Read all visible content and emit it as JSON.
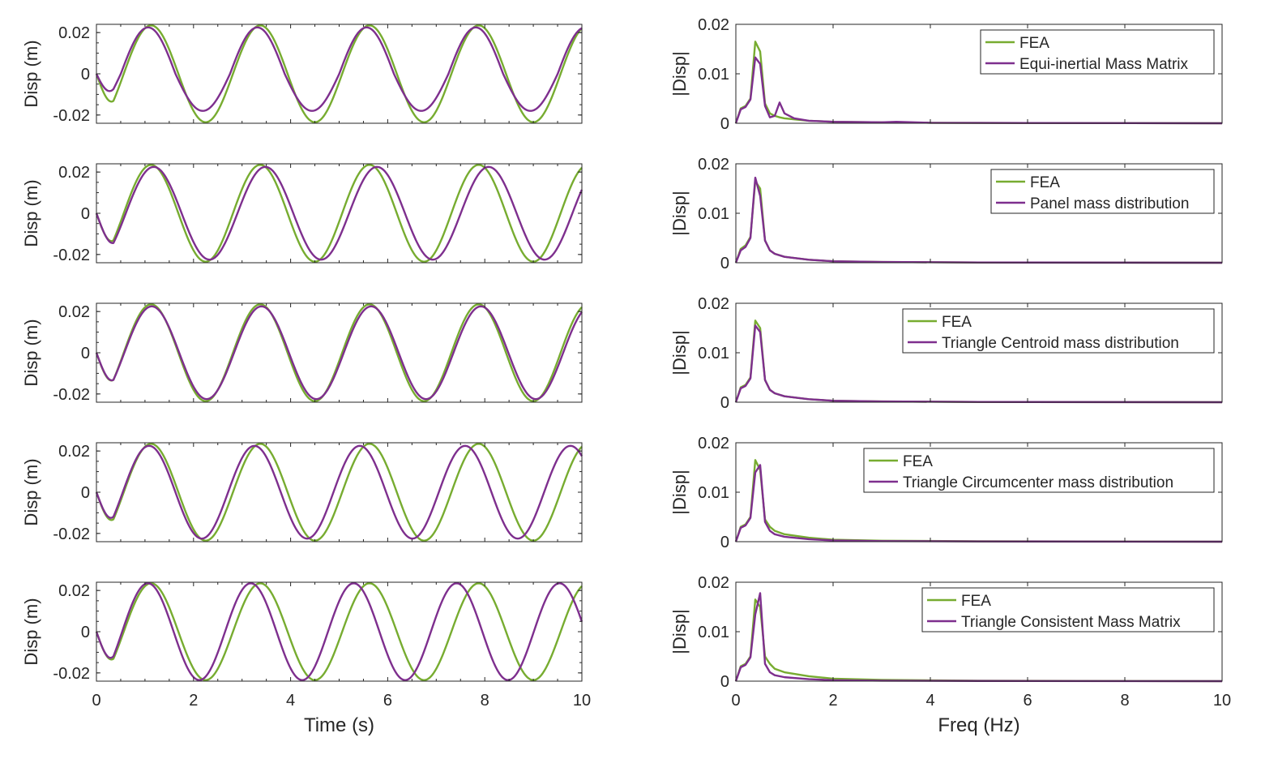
{
  "colors": {
    "fea": "#77AC30",
    "model": "#7E2F8E",
    "axis": "#262626"
  },
  "time_axis": {
    "xlabel": "Time (s)",
    "ylabel": "Disp (m)",
    "xlim": [
      0,
      10
    ],
    "ylim": [
      -0.024,
      0.024
    ],
    "xticks": [
      "0",
      "2",
      "4",
      "6",
      "8",
      "10"
    ],
    "yticks": [
      "-0.02",
      "0",
      "0.02"
    ]
  },
  "freq_axis": {
    "xlabel": "Freq (Hz)",
    "ylabel": "|Disp|",
    "xlim": [
      0,
      10
    ],
    "ylim": [
      0,
      0.02
    ],
    "xticks": [
      "0",
      "2",
      "4",
      "6",
      "8",
      "10"
    ],
    "yticks": [
      "0",
      "0.01",
      "0.02"
    ]
  },
  "chart_data": [
    {
      "type": "line",
      "panel": "time",
      "row": 1,
      "xlabel": "",
      "ylabel": "Disp (m)",
      "series": [
        {
          "name": "FEA",
          "period": 2.25,
          "amp": 0.0235,
          "lag": 0.0,
          "dip": [
            0,
            0
          ]
        },
        {
          "name": "Equi-inertial Mass Matrix",
          "period": 2.25,
          "amp": 0.0225,
          "lag": -0.06,
          "dip": [
            0.2,
            0.004
          ]
        }
      ]
    },
    {
      "type": "line",
      "panel": "freq",
      "row": 1,
      "xlabel": "",
      "ylabel": "|Disp|",
      "series": [
        {
          "name": "FEA",
          "points": [
            [
              0,
              0
            ],
            [
              0.1,
              0.003
            ],
            [
              0.2,
              0.0035
            ],
            [
              0.3,
              0.005
            ],
            [
              0.4,
              0.0165
            ],
            [
              0.5,
              0.0145
            ],
            [
              0.6,
              0.004
            ],
            [
              0.7,
              0.002
            ],
            [
              0.8,
              0.0015
            ],
            [
              0.9,
              0.0012
            ],
            [
              1.0,
              0.001
            ],
            [
              1.2,
              0.0008
            ],
            [
              1.5,
              0.0005
            ],
            [
              2,
              0.0003
            ],
            [
              3,
              0.0002
            ],
            [
              4,
              0.0001
            ],
            [
              6,
              5e-05
            ],
            [
              10,
              0
            ]
          ]
        },
        {
          "name": "Equi-inertial Mass Matrix",
          "points": [
            [
              0,
              0
            ],
            [
              0.1,
              0.0028
            ],
            [
              0.2,
              0.0033
            ],
            [
              0.3,
              0.0048
            ],
            [
              0.4,
              0.0133
            ],
            [
              0.5,
              0.012
            ],
            [
              0.6,
              0.0035
            ],
            [
              0.7,
              0.0012
            ],
            [
              0.8,
              0.0015
            ],
            [
              0.9,
              0.0042
            ],
            [
              1.0,
              0.002
            ],
            [
              1.2,
              0.001
            ],
            [
              1.5,
              0.0005
            ],
            [
              2,
              0.0003
            ],
            [
              3,
              0.0002
            ],
            [
              3.3,
              0.0003
            ],
            [
              4,
              0.0001
            ],
            [
              6,
              5e-05
            ],
            [
              10,
              0
            ]
          ]
        }
      ]
    },
    {
      "type": "line",
      "panel": "time",
      "row": 2,
      "xlabel": "",
      "ylabel": "Disp (m)",
      "series": [
        {
          "name": "FEA",
          "period": 2.25,
          "amp": 0.0235,
          "lag": 0.0,
          "dip": [
            0,
            0
          ]
        },
        {
          "name": "Panel mass distribution",
          "period": 2.3,
          "amp": 0.0225,
          "lag": 0.03,
          "dip": [
            0,
            0
          ]
        }
      ]
    },
    {
      "type": "line",
      "panel": "freq",
      "row": 2,
      "xlabel": "",
      "ylabel": "|Disp|",
      "series": [
        {
          "name": "FEA",
          "points": [
            [
              0,
              0
            ],
            [
              0.1,
              0.0028
            ],
            [
              0.2,
              0.0035
            ],
            [
              0.3,
              0.0052
            ],
            [
              0.4,
              0.0165
            ],
            [
              0.5,
              0.015
            ],
            [
              0.6,
              0.0045
            ],
            [
              0.7,
              0.0025
            ],
            [
              0.8,
              0.0018
            ],
            [
              1.0,
              0.0012
            ],
            [
              1.5,
              0.0006
            ],
            [
              2,
              0.0003
            ],
            [
              3,
              0.00015
            ],
            [
              5,
              5e-05
            ],
            [
              10,
              0
            ]
          ]
        },
        {
          "name": "Panel mass distribution",
          "points": [
            [
              0,
              0
            ],
            [
              0.1,
              0.0025
            ],
            [
              0.2,
              0.0032
            ],
            [
              0.3,
              0.005
            ],
            [
              0.4,
              0.0172
            ],
            [
              0.5,
              0.0135
            ],
            [
              0.6,
              0.0045
            ],
            [
              0.7,
              0.0025
            ],
            [
              0.8,
              0.0018
            ],
            [
              1.0,
              0.0012
            ],
            [
              1.5,
              0.0006
            ],
            [
              2,
              0.0003
            ],
            [
              3,
              0.00015
            ],
            [
              5,
              5e-05
            ],
            [
              10,
              0
            ]
          ]
        }
      ]
    },
    {
      "type": "line",
      "panel": "time",
      "row": 3,
      "xlabel": "",
      "ylabel": "Disp (m)",
      "series": [
        {
          "name": "FEA",
          "period": 2.25,
          "amp": 0.0235,
          "lag": 0.0,
          "dip": [
            0,
            0
          ]
        },
        {
          "name": "Triangle Centroid mass distribution",
          "period": 2.26,
          "amp": 0.0225,
          "lag": 0.01,
          "dip": [
            0,
            0
          ]
        }
      ]
    },
    {
      "type": "line",
      "panel": "freq",
      "row": 3,
      "xlabel": "",
      "ylabel": "|Disp|",
      "series": [
        {
          "name": "FEA",
          "points": [
            [
              0,
              0
            ],
            [
              0.1,
              0.003
            ],
            [
              0.2,
              0.0035
            ],
            [
              0.3,
              0.005
            ],
            [
              0.4,
              0.0165
            ],
            [
              0.5,
              0.015
            ],
            [
              0.6,
              0.0045
            ],
            [
              0.7,
              0.0025
            ],
            [
              0.8,
              0.0018
            ],
            [
              1.0,
              0.0012
            ],
            [
              1.5,
              0.0006
            ],
            [
              2,
              0.0003
            ],
            [
              3,
              0.00015
            ],
            [
              5,
              5e-05
            ],
            [
              10,
              0
            ]
          ]
        },
        {
          "name": "Triangle Centroid mass distribution",
          "points": [
            [
              0,
              0
            ],
            [
              0.1,
              0.0028
            ],
            [
              0.2,
              0.0033
            ],
            [
              0.3,
              0.0048
            ],
            [
              0.4,
              0.0155
            ],
            [
              0.5,
              0.0142
            ],
            [
              0.6,
              0.0045
            ],
            [
              0.7,
              0.0025
            ],
            [
              0.8,
              0.0018
            ],
            [
              1.0,
              0.0012
            ],
            [
              1.5,
              0.0006
            ],
            [
              2,
              0.0003
            ],
            [
              3,
              0.00015
            ],
            [
              5,
              5e-05
            ],
            [
              10,
              0
            ]
          ]
        }
      ]
    },
    {
      "type": "line",
      "panel": "time",
      "row": 4,
      "xlabel": "",
      "ylabel": "Disp (m)",
      "series": [
        {
          "name": "FEA",
          "period": 2.25,
          "amp": 0.0235,
          "lag": 0.0,
          "dip": [
            0,
            0
          ]
        },
        {
          "name": "Triangle Circumcenter mass distribution",
          "period": 2.17,
          "amp": 0.0225,
          "lag": 0.0,
          "dip": [
            0,
            0
          ]
        }
      ]
    },
    {
      "type": "line",
      "panel": "freq",
      "row": 4,
      "xlabel": "",
      "ylabel": "|Disp|",
      "series": [
        {
          "name": "FEA",
          "points": [
            [
              0,
              0
            ],
            [
              0.1,
              0.003
            ],
            [
              0.2,
              0.0035
            ],
            [
              0.3,
              0.005
            ],
            [
              0.4,
              0.0165
            ],
            [
              0.5,
              0.0145
            ],
            [
              0.6,
              0.0045
            ],
            [
              0.7,
              0.003
            ],
            [
              0.8,
              0.0022
            ],
            [
              1.0,
              0.0015
            ],
            [
              1.5,
              0.0008
            ],
            [
              2,
              0.0004
            ],
            [
              3,
              0.0002
            ],
            [
              5,
              8e-05
            ],
            [
              10,
              0
            ]
          ]
        },
        {
          "name": "Triangle Circumcenter mass distribution",
          "points": [
            [
              0,
              0
            ],
            [
              0.1,
              0.0028
            ],
            [
              0.2,
              0.0033
            ],
            [
              0.3,
              0.0048
            ],
            [
              0.4,
              0.014
            ],
            [
              0.5,
              0.0155
            ],
            [
              0.6,
              0.004
            ],
            [
              0.7,
              0.0022
            ],
            [
              0.8,
              0.0015
            ],
            [
              1.0,
              0.001
            ],
            [
              1.5,
              0.0005
            ],
            [
              2,
              0.00025
            ],
            [
              3,
              0.00012
            ],
            [
              5,
              5e-05
            ],
            [
              10,
              0
            ]
          ]
        }
      ]
    },
    {
      "type": "line",
      "panel": "time",
      "row": 5,
      "xlabel": "Time (s)",
      "ylabel": "Disp (m)",
      "series": [
        {
          "name": "FEA",
          "period": 2.25,
          "amp": 0.0235,
          "lag": 0.0,
          "dip": [
            0,
            0
          ]
        },
        {
          "name": "Triangle Consistent Mass Matrix",
          "period": 2.12,
          "amp": 0.0235,
          "lag": 0.0,
          "dip": [
            0,
            0
          ]
        }
      ]
    },
    {
      "type": "line",
      "panel": "freq",
      "row": 5,
      "xlabel": "Freq (Hz)",
      "ylabel": "|Disp|",
      "series": [
        {
          "name": "FEA",
          "points": [
            [
              0,
              0
            ],
            [
              0.1,
              0.003
            ],
            [
              0.2,
              0.0035
            ],
            [
              0.3,
              0.005
            ],
            [
              0.4,
              0.0165
            ],
            [
              0.5,
              0.015
            ],
            [
              0.6,
              0.005
            ],
            [
              0.7,
              0.0035
            ],
            [
              0.8,
              0.0025
            ],
            [
              1.0,
              0.0018
            ],
            [
              1.5,
              0.001
            ],
            [
              2,
              0.0005
            ],
            [
              3,
              0.00025
            ],
            [
              5,
              0.0001
            ],
            [
              10,
              0
            ]
          ]
        },
        {
          "name": "Triangle Consistent Mass Matrix",
          "points": [
            [
              0,
              0
            ],
            [
              0.1,
              0.0028
            ],
            [
              0.2,
              0.0033
            ],
            [
              0.3,
              0.0048
            ],
            [
              0.4,
              0.0135
            ],
            [
              0.5,
              0.0178
            ],
            [
              0.6,
              0.0035
            ],
            [
              0.7,
              0.0018
            ],
            [
              0.8,
              0.0012
            ],
            [
              1.0,
              0.0008
            ],
            [
              1.5,
              0.0004
            ],
            [
              2,
              0.0002
            ],
            [
              3,
              0.0001
            ],
            [
              5,
              4e-05
            ],
            [
              10,
              0
            ]
          ]
        }
      ]
    }
  ]
}
